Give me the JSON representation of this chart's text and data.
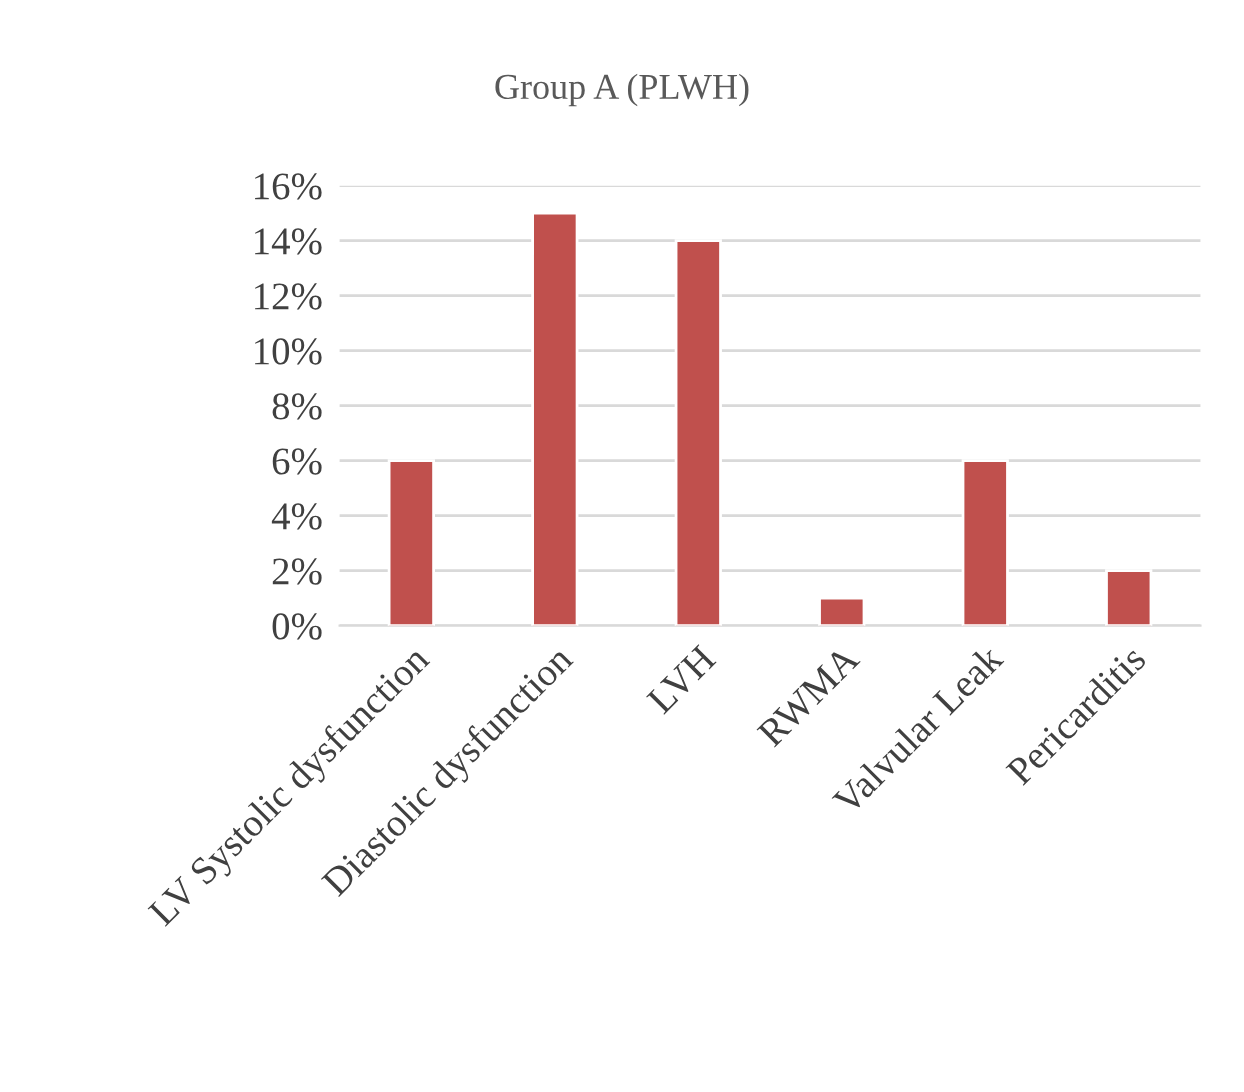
{
  "chart_data": {
    "type": "bar",
    "title": "Group A (PLWH)",
    "categories": [
      "LV Systolic dysfunction",
      "Diastolic dysfunction",
      "LVH",
      "RWMA",
      "Valvular Leak",
      "Pericarditis"
    ],
    "values": [
      6,
      15,
      14,
      1,
      6,
      2
    ],
    "color": "#c0504d",
    "ylim": [
      0,
      16
    ],
    "yticks": [
      {
        "value": 0,
        "label": "0%"
      },
      {
        "value": 2,
        "label": "2%"
      },
      {
        "value": 4,
        "label": "4%"
      },
      {
        "value": 6,
        "label": "6%"
      },
      {
        "value": 8,
        "label": "8%"
      },
      {
        "value": 10,
        "label": "10%"
      },
      {
        "value": 12,
        "label": "12%"
      },
      {
        "value": 14,
        "label": "14%"
      },
      {
        "value": 16,
        "label": "16%"
      }
    ],
    "grid": "y",
    "legend": false
  }
}
